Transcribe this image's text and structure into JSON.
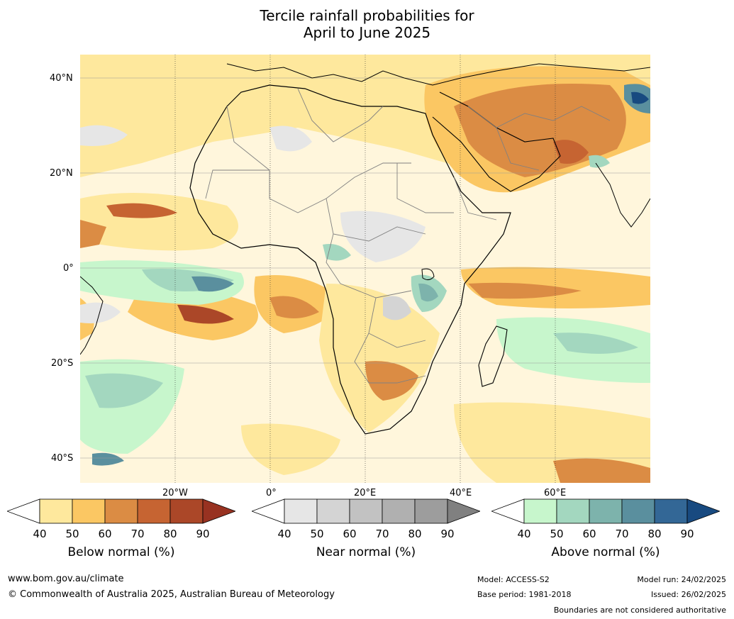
{
  "title": {
    "line1": "Tercile rainfall probabilities for",
    "line2": "April to June 2025"
  },
  "map": {
    "lat_labels": [
      "40°N",
      "20°N",
      "0°",
      "20°S",
      "40°S"
    ],
    "lon_labels": [
      "20°W",
      "0°",
      "20°E",
      "40°E",
      "60°E"
    ],
    "ocean_color": "#ffffff",
    "coastline_color": "#000000",
    "border_color": "#808080"
  },
  "colorbars": [
    {
      "name": "below",
      "label": "Below normal (%)",
      "ticks": [
        "40",
        "50",
        "60",
        "70",
        "80",
        "90"
      ],
      "colors": [
        "#ffffff",
        "#fee89d",
        "#fbc763",
        "#db8c44",
        "#c66432",
        "#ab4728",
        "#983221"
      ]
    },
    {
      "name": "near",
      "label": "Near normal (%)",
      "ticks": [
        "40",
        "50",
        "60",
        "70",
        "80",
        "90"
      ],
      "colors": [
        "#ffffff",
        "#e6e6e6",
        "#d4d4d4",
        "#c2c2c2",
        "#b0b0b0",
        "#9d9d9d",
        "#808080"
      ]
    },
    {
      "name": "above",
      "label": "Above normal (%)",
      "ticks": [
        "40",
        "50",
        "60",
        "70",
        "80",
        "90"
      ],
      "colors": [
        "#ffffff",
        "#c7f6cc",
        "#a3d7bf",
        "#7db3ac",
        "#5a8f9e",
        "#336796",
        "#184a80"
      ]
    }
  ],
  "footer": {
    "website": "www.bom.gov.au/climate",
    "copyright": "© Commonwealth of Australia 2025, Australian Bureau of Meteorology",
    "model": "Model: ACCESS-S2",
    "base_period": "Base period: 1981-2018",
    "model_run": "Model run: 24/02/2025",
    "issued": "Issued: 26/02/2025",
    "disclaimer": "Boundaries are not considered authoritative"
  }
}
